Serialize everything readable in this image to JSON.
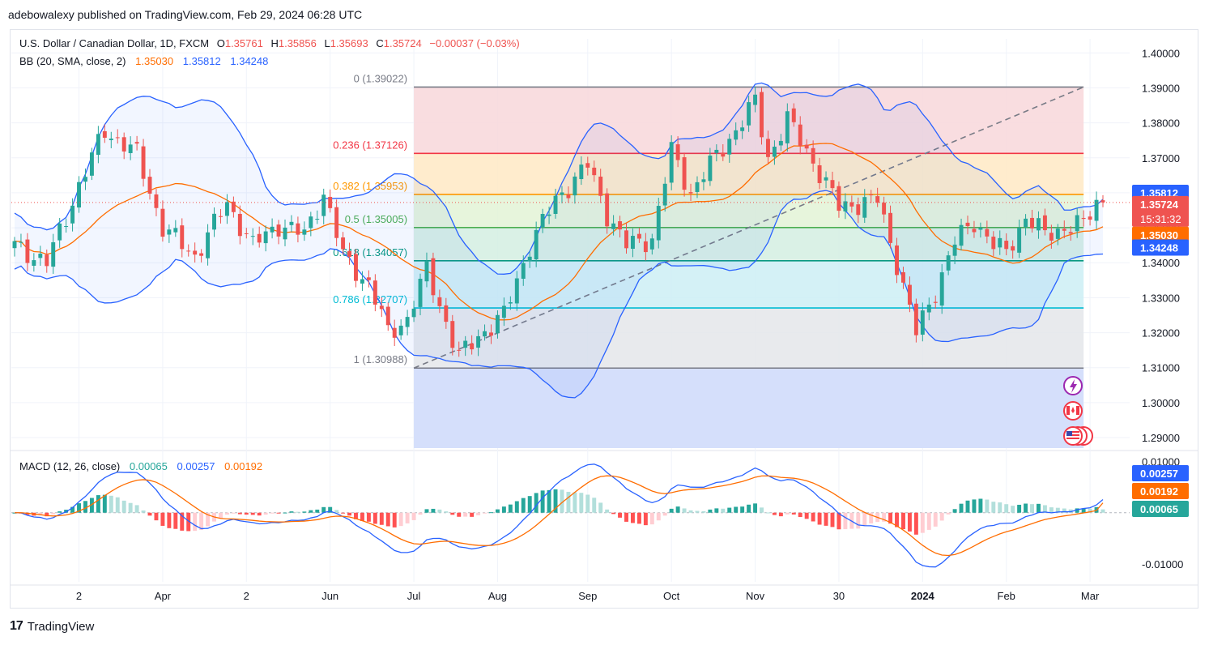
{
  "header": {
    "publisher_line": "adebowalexy published on TradingView.com, Feb 29, 2024 06:28 UTC"
  },
  "legend": {
    "symbol": "U.S. Dollar / Canadian Dollar, 1D, FXCM",
    "open_label": "O",
    "open": "1.35761",
    "high_label": "H",
    "high": "1.35856",
    "low_label": "L",
    "low": "1.35693",
    "close_label": "C",
    "close": "1.35724",
    "change": "−0.00037 (−0.03%)",
    "bb_title": "BB (20, SMA, close, 2)",
    "bb_basis": "1.35030",
    "bb_upper": "1.35812",
    "bb_lower": "1.34248",
    "macd_title": "MACD (12, 26, close)",
    "macd_hist": "0.00065",
    "macd_line": "0.00257",
    "macd_signal": "0.00192"
  },
  "colors": {
    "up": "#26a69a",
    "down": "#ef5350",
    "bb_band": "#2962ff",
    "bb_basis": "#ff6d00",
    "macd_line": "#2962ff",
    "signal_line": "#ff6d00",
    "grid": "#f0f3fa",
    "axis_text": "#131722"
  },
  "badges": {
    "bb_upper": "1.35812",
    "price": "1.35724",
    "countdown": "15:31:32",
    "bb_basis": "1.35030",
    "bb_lower": "1.34248",
    "macd_line": "0.00257",
    "macd_signal": "0.00192",
    "macd_hist": "0.00065"
  },
  "icons": [
    "lightning-event-icon",
    "canada-flag-icon",
    "us-flag-icon"
  ],
  "footer": {
    "brand": "TradingView"
  },
  "chart_data": [
    {
      "type": "candlestick",
      "title": "U.S. Dollar / Canadian Dollar, 1D, FXCM",
      "ylim": [
        1.287,
        1.404
      ],
      "y_ticks": [
        "1.40000",
        "1.39000",
        "1.38000",
        "1.37000",
        "1.36000",
        "1.35000",
        "1.34000",
        "1.33000",
        "1.32000",
        "1.31000",
        "1.30000",
        "1.29000"
      ],
      "x_ticks": [
        {
          "label": "2",
          "bar": 10
        },
        {
          "label": "Apr",
          "bar": 23
        },
        {
          "label": "2",
          "bar": 36
        },
        {
          "label": "Jun",
          "bar": 49
        },
        {
          "label": "Jul",
          "bar": 62
        },
        {
          "label": "Aug",
          "bar": 75
        },
        {
          "label": "Sep",
          "bar": 89
        },
        {
          "label": "Oct",
          "bar": 102
        },
        {
          "label": "Nov",
          "bar": 115
        },
        {
          "label": "30",
          "bar": 128
        },
        {
          "label": "2024",
          "bar": 141
        },
        {
          "label": "Feb",
          "bar": 154
        },
        {
          "label": "Mar",
          "bar": 167
        }
      ],
      "bar_count": 170,
      "close_path": [
        [
          0,
          1.345
        ],
        [
          5,
          1.34
        ],
        [
          10,
          1.362
        ],
        [
          14,
          1.378
        ],
        [
          19,
          1.371
        ],
        [
          23,
          1.35
        ],
        [
          28,
          1.342
        ],
        [
          33,
          1.357
        ],
        [
          37,
          1.345
        ],
        [
          41,
          1.351
        ],
        [
          45,
          1.348
        ],
        [
          48,
          1.36
        ],
        [
          51,
          1.342
        ],
        [
          55,
          1.334
        ],
        [
          58,
          1.32
        ],
        [
          61,
          1.324
        ],
        [
          64,
          1.338
        ],
        [
          66,
          1.328
        ],
        [
          69,
          1.313
        ],
        [
          72,
          1.319
        ],
        [
          76,
          1.325
        ],
        [
          80,
          1.345
        ],
        [
          84,
          1.358
        ],
        [
          89,
          1.368
        ],
        [
          92,
          1.354
        ],
        [
          95,
          1.345
        ],
        [
          99,
          1.347
        ],
        [
          102,
          1.372
        ],
        [
          105,
          1.36
        ],
        [
          108,
          1.368
        ],
        [
          112,
          1.378
        ],
        [
          115,
          1.386
        ],
        [
          117,
          1.37
        ],
        [
          120,
          1.381
        ],
        [
          124,
          1.369
        ],
        [
          128,
          1.356
        ],
        [
          131,
          1.357
        ],
        [
          134,
          1.358
        ],
        [
          137,
          1.34
        ],
        [
          140,
          1.32
        ],
        [
          143,
          1.332
        ],
        [
          146,
          1.346
        ],
        [
          149,
          1.352
        ],
        [
          152,
          1.345
        ],
        [
          154,
          1.343
        ],
        [
          157,
          1.353
        ],
        [
          160,
          1.348
        ],
        [
          163,
          1.35
        ],
        [
          166,
          1.351
        ],
        [
          168,
          1.3572
        ]
      ],
      "fibonacci_retracement": [
        {
          "label": "0 (1.39022)",
          "value": 1.39022,
          "color": "#787b86"
        },
        {
          "label": "0.236 (1.37126)",
          "value": 1.37126,
          "color": "#f23645"
        },
        {
          "label": "0.382 (1.35953)",
          "value": 1.35953,
          "color": "#ff9800"
        },
        {
          "label": "0.5 (1.35005)",
          "value": 1.35005,
          "color": "#4caf50"
        },
        {
          "label": "0.618 (1.34057)",
          "value": 1.34057,
          "color": "#089981"
        },
        {
          "label": "0.786 (1.32707)",
          "value": 1.32707,
          "color": "#00bcd4"
        },
        {
          "label": "1 (1.30988)",
          "value": 1.30988,
          "color": "#787b86"
        }
      ],
      "bollinger_bands": {
        "period": 20,
        "std": 2,
        "basis": 1.3503,
        "upper": 1.35812,
        "lower": 1.34248
      },
      "last_close": 1.35724
    },
    {
      "type": "macd",
      "title": "MACD (12, 26, close)",
      "ylim": [
        -0.0135,
        0.0112
      ],
      "y_ticks": [
        "0.01000",
        "-0.01000"
      ],
      "macd_line": 0.00257,
      "signal": 0.00192,
      "histogram": 0.00065
    }
  ]
}
